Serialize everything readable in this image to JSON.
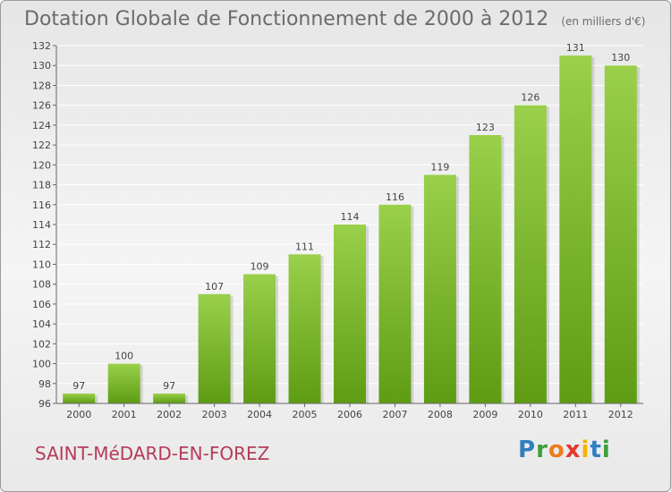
{
  "header": {
    "title": "Dotation Globale de Fonctionnement de 2000 à 2012",
    "subtitle": "(en milliers d'€)"
  },
  "footer": {
    "commune": "SAINT-MéDARD-EN-FOREZ",
    "logo_letters": [
      "P",
      "r",
      "o",
      "x",
      "i",
      "t",
      "i"
    ],
    "logo_colors": [
      "#2f7fc1",
      "#3c9f3c",
      "#f07b1b",
      "#e3382d",
      "#f2b400",
      "#2f7fc1",
      "#3c9f3c"
    ]
  },
  "colors": {
    "bar_top": "#9ad04b",
    "bar_bottom": "#5e9c14",
    "axis": "#666666",
    "grid": "#ffffff"
  },
  "chart_data": {
    "type": "bar",
    "title": "Dotation Globale de Fonctionnement de 2000 à 2012",
    "subtitle": "(en milliers d'€)",
    "xlabel": "",
    "ylabel": "",
    "categories": [
      "2000",
      "2001",
      "2002",
      "2003",
      "2004",
      "2005",
      "2006",
      "2007",
      "2008",
      "2009",
      "2010",
      "2011",
      "2012"
    ],
    "values": [
      97,
      100,
      97,
      107,
      109,
      111,
      114,
      116,
      119,
      123,
      126,
      131,
      130
    ],
    "ylim": [
      96,
      132
    ],
    "yticks": [
      96,
      98,
      100,
      102,
      104,
      106,
      108,
      110,
      112,
      114,
      116,
      118,
      120,
      122,
      124,
      126,
      128,
      130,
      132
    ],
    "grid": true,
    "legend": "none"
  }
}
